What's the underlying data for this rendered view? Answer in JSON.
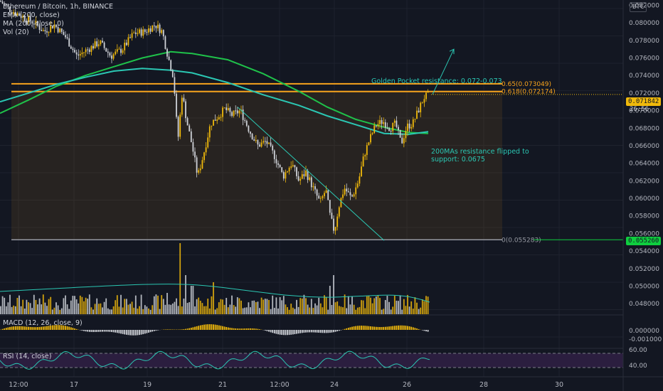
{
  "header": {
    "symbol_line": "Ethereum / Bitcoin, 1h, BINANCE",
    "ema_line": "EMA (200, close)",
    "ma_line": "MA (200, close, 0)",
    "vol_line": "Vol (20)",
    "currency": "BTC"
  },
  "price_tag": {
    "value": "0.071842",
    "countdown": "26:56"
  },
  "low_tag": {
    "value": "0.055260"
  },
  "annotations": {
    "golden_pocket": "Golden Pocket resistance: 0.072-0.073",
    "ma_support_1": "200MAs resistance flipped to",
    "ma_support_2": "support: 0.0675"
  },
  "colors": {
    "background": "#131722",
    "up": "#f0b90b",
    "down": "#cfd2d8",
    "ema": "#1fc24a",
    "ma": "#2bc7b3",
    "fib": "#f7a31c",
    "trendline": "#2bc7b3",
    "rsi_band": "#2b1e3f",
    "rsi_line": "#2bc7b3",
    "price_tag": "#f0b90b",
    "low_tag": "#0fce3f"
  },
  "chart_data": {
    "type": "candlestick",
    "pair": "ETH/BTC",
    "timeframe": "1h",
    "x_ticks": [
      "12:00",
      "17",
      "19",
      "21",
      "12:00",
      "24",
      "26",
      "28",
      "30"
    ],
    "price_ticks": [
      "0.082000",
      "0.080000",
      "0.078000",
      "0.076000",
      "0.074000",
      "0.072000",
      "0.070000",
      "0.068000",
      "0.066000",
      "0.064000",
      "0.062000",
      "0.060000",
      "0.058000",
      "0.056000",
      "0.054000",
      "0.052000",
      "0.050000",
      "0.048000"
    ],
    "ylim": [
      0.0468,
      0.0826
    ],
    "fib_levels": [
      {
        "label": "0.65(0.073049)",
        "value": 0.073049
      },
      {
        "label": "0.618(0.072174)",
        "value": 0.072174
      },
      {
        "label": "0(0.055283)",
        "value": 0.055283
      }
    ],
    "price_path": [
      [
        0,
        0.0825
      ],
      [
        14,
        0.0815
      ],
      [
        30,
        0.0808
      ],
      [
        48,
        0.08
      ],
      [
        62,
        0.079
      ],
      [
        76,
        0.0798
      ],
      [
        92,
        0.0784
      ],
      [
        108,
        0.0762
      ],
      [
        124,
        0.077
      ],
      [
        140,
        0.0778
      ],
      [
        156,
        0.0762
      ],
      [
        172,
        0.077
      ],
      [
        188,
        0.0788
      ],
      [
        204,
        0.079
      ],
      [
        218,
        0.0798
      ],
      [
        228,
        0.079
      ],
      [
        236,
        0.0762
      ],
      [
        244,
        0.0738
      ],
      [
        250,
        0.0665
      ],
      [
        256,
        0.072
      ],
      [
        262,
        0.069
      ],
      [
        270,
        0.066
      ],
      [
        278,
        0.0625
      ],
      [
        286,
        0.065
      ],
      [
        296,
        0.0685
      ],
      [
        306,
        0.0693
      ],
      [
        316,
        0.0702
      ],
      [
        326,
        0.0695
      ],
      [
        338,
        0.07
      ],
      [
        350,
        0.0678
      ],
      [
        362,
        0.066
      ],
      [
        374,
        0.0665
      ],
      [
        386,
        0.0648
      ],
      [
        398,
        0.0625
      ],
      [
        410,
        0.064
      ],
      [
        420,
        0.062
      ],
      [
        430,
        0.063
      ],
      [
        440,
        0.0612
      ],
      [
        450,
        0.0595
      ],
      [
        458,
        0.061
      ],
      [
        464,
        0.058
      ],
      [
        470,
        0.0562
      ],
      [
        476,
        0.059
      ],
      [
        484,
        0.0612
      ],
      [
        494,
        0.06
      ],
      [
        504,
        0.062
      ],
      [
        512,
        0.065
      ],
      [
        520,
        0.0668
      ],
      [
        528,
        0.0683
      ],
      [
        538,
        0.0688
      ],
      [
        548,
        0.068
      ],
      [
        556,
        0.0685
      ],
      [
        564,
        0.0662
      ],
      [
        572,
        0.0682
      ],
      [
        580,
        0.0685
      ],
      [
        588,
        0.07
      ],
      [
        596,
        0.0715
      ],
      [
        604,
        0.07184
      ]
    ],
    "ema_200": [
      [
        0,
        0.0697
      ],
      [
        40,
        0.0712
      ],
      [
        80,
        0.0728
      ],
      [
        120,
        0.074
      ],
      [
        160,
        0.075
      ],
      [
        200,
        0.076
      ],
      [
        240,
        0.0767
      ],
      [
        270,
        0.0765
      ],
      [
        320,
        0.0758
      ],
      [
        370,
        0.0742
      ],
      [
        420,
        0.0722
      ],
      [
        460,
        0.0704
      ],
      [
        500,
        0.069
      ],
      [
        540,
        0.0681
      ],
      [
        575,
        0.0675
      ],
      [
        602,
        0.0674
      ]
    ],
    "ma_200": [
      [
        0,
        0.071
      ],
      [
        40,
        0.072
      ],
      [
        80,
        0.073
      ],
      [
        120,
        0.0738
      ],
      [
        160,
        0.0745
      ],
      [
        200,
        0.0748
      ],
      [
        240,
        0.0746
      ],
      [
        270,
        0.0743
      ],
      [
        320,
        0.0732
      ],
      [
        370,
        0.0718
      ],
      [
        420,
        0.0706
      ],
      [
        460,
        0.0694
      ],
      [
        500,
        0.0684
      ],
      [
        540,
        0.0674
      ],
      [
        575,
        0.0673
      ],
      [
        602,
        0.0676
      ]
    ],
    "trendline": [
      [
        334,
        0.0704
      ],
      [
        540,
        0.0552
      ]
    ],
    "target_arrow": [
      [
        608,
        0.07184
      ],
      [
        638,
        0.077
      ]
    ],
    "volume_spikes": [
      [
        236,
        0.3
      ],
      [
        254,
        1.0
      ],
      [
        262,
        0.55
      ],
      [
        270,
        0.4
      ],
      [
        300,
        0.45
      ],
      [
        470,
        0.55
      ],
      [
        464,
        0.4
      ]
    ],
    "macd": {
      "label": "MACD (12, 26, close, 9)",
      "ticks": [
        "0.000000",
        "-0.001000"
      ]
    },
    "rsi": {
      "label": "RSI (14, close)",
      "ticks": [
        "60.00",
        "40.00"
      ]
    }
  }
}
